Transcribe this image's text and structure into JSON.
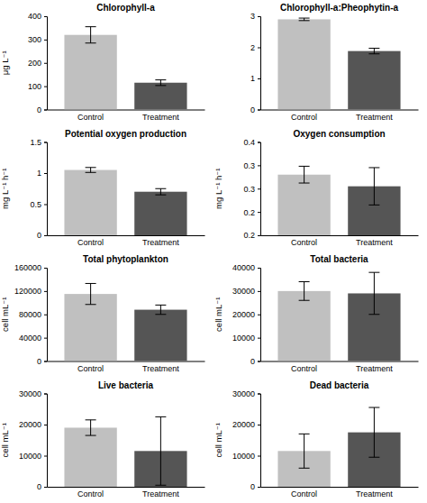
{
  "chart_data": [
    {
      "type": "bar",
      "title": "Chlorophyll-a",
      "ylabel": "μg L⁻¹",
      "categories": [
        "Control",
        "Treatment"
      ],
      "values": [
        320,
        115
      ],
      "errors": [
        35,
        12
      ],
      "colors": [
        "#c0c0c0",
        "#555555"
      ],
      "ylim": [
        0,
        400
      ],
      "yticks": [
        0,
        100,
        200,
        300,
        400
      ]
    },
    {
      "type": "bar",
      "title": "Chlorophyll-a:Pheophytin-a",
      "categories": [
        "Control",
        "Treatment"
      ],
      "values": [
        2.9,
        1.88
      ],
      "errors": [
        0.04,
        0.09
      ],
      "colors": [
        "#c0c0c0",
        "#555555"
      ],
      "ylim": [
        0,
        3
      ],
      "yticks": [
        0,
        1,
        2,
        3
      ]
    },
    {
      "type": "bar",
      "title": "Potential oxygen production",
      "ylabel": "mg L⁻¹ h⁻¹",
      "categories": [
        "Control",
        "Treatment"
      ],
      "values": [
        1.05,
        0.7
      ],
      "errors": [
        0.04,
        0.05
      ],
      "colors": [
        "#c0c0c0",
        "#555555"
      ],
      "ylim": [
        0,
        1.5
      ],
      "yticks": [
        0,
        0.5,
        1,
        1.5
      ]
    },
    {
      "type": "bar",
      "title": "Oxygen consumption",
      "ylabel": "mg L⁻¹ h⁻¹",
      "categories": [
        "Control",
        "Treatment"
      ],
      "values": [
        0.33,
        0.305
      ],
      "errors": [
        0.018,
        0.04
      ],
      "colors": [
        "#c0c0c0",
        "#555555"
      ],
      "ylim": [
        0.2,
        0.4
      ],
      "yticks": [
        0.2,
        {
          "value": 0.25,
          "label": "0.2"
        },
        0.3,
        {
          "value": 0.35,
          "label": "0.3"
        },
        0.4
      ]
    },
    {
      "type": "bar",
      "title": "Total phytoplankton",
      "ylabel": "cell mL⁻¹",
      "categories": [
        "Control",
        "Treatment"
      ],
      "values": [
        115000,
        88000
      ],
      "errors": [
        18000,
        8000
      ],
      "colors": [
        "#c0c0c0",
        "#555555"
      ],
      "ylim": [
        0,
        160000
      ],
      "yticks": [
        0,
        40000,
        80000,
        120000,
        160000
      ]
    },
    {
      "type": "bar",
      "title": "Total bacteria",
      "ylabel": "cell mL⁻¹",
      "categories": [
        "Control",
        "Treatment"
      ],
      "values": [
        30000,
        29000
      ],
      "errors": [
        4000,
        9000
      ],
      "colors": [
        "#c0c0c0",
        "#555555"
      ],
      "ylim": [
        0,
        40000
      ],
      "yticks": [
        0,
        10000,
        20000,
        30000,
        40000
      ]
    },
    {
      "type": "bar",
      "title": "Live bacteria",
      "ylabel": "cell mL⁻¹",
      "categories": [
        "Control",
        "Treatment"
      ],
      "values": [
        19000,
        11500
      ],
      "errors": [
        2500,
        11000
      ],
      "colors": [
        "#c0c0c0",
        "#555555"
      ],
      "ylim": [
        0,
        30000
      ],
      "yticks": [
        0,
        10000,
        20000,
        30000
      ]
    },
    {
      "type": "bar",
      "title": "Dead bacteria",
      "ylabel": "cell mL⁻¹",
      "categories": [
        "Control",
        "Treatment"
      ],
      "values": [
        11500,
        17500
      ],
      "errors": [
        5500,
        8000
      ],
      "colors": [
        "#c0c0c0",
        "#555555"
      ],
      "ylim": [
        0,
        30000
      ],
      "yticks": [
        0,
        10000,
        20000,
        30000
      ]
    }
  ]
}
